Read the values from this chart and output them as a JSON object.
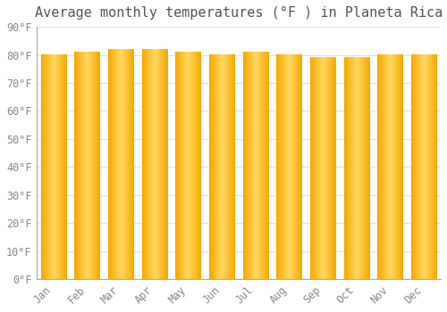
{
  "title": "Average monthly temperatures (°F ) in Planeta Rica",
  "months": [
    "Jan",
    "Feb",
    "Mar",
    "Apr",
    "May",
    "Jun",
    "Jul",
    "Aug",
    "Sep",
    "Oct",
    "Nov",
    "Dec"
  ],
  "values": [
    80,
    81,
    82,
    82,
    81,
    80,
    81,
    80,
    79,
    79,
    80,
    80
  ],
  "ylim": [
    0,
    90
  ],
  "yticks": [
    0,
    10,
    20,
    30,
    40,
    50,
    60,
    70,
    80,
    90
  ],
  "ytick_labels": [
    "0°F",
    "10°F",
    "20°F",
    "30°F",
    "40°F",
    "50°F",
    "60°F",
    "70°F",
    "80°F",
    "90°F"
  ],
  "bg_color": "#ffffff",
  "plot_bg_color": "#ffffff",
  "grid_color": "#e0e0e0",
  "bar_color_light": "#FFD860",
  "bar_color_dark": "#F5A800",
  "title_fontsize": 11,
  "tick_fontsize": 8.5,
  "bar_width": 0.75,
  "tick_color": "#888888"
}
